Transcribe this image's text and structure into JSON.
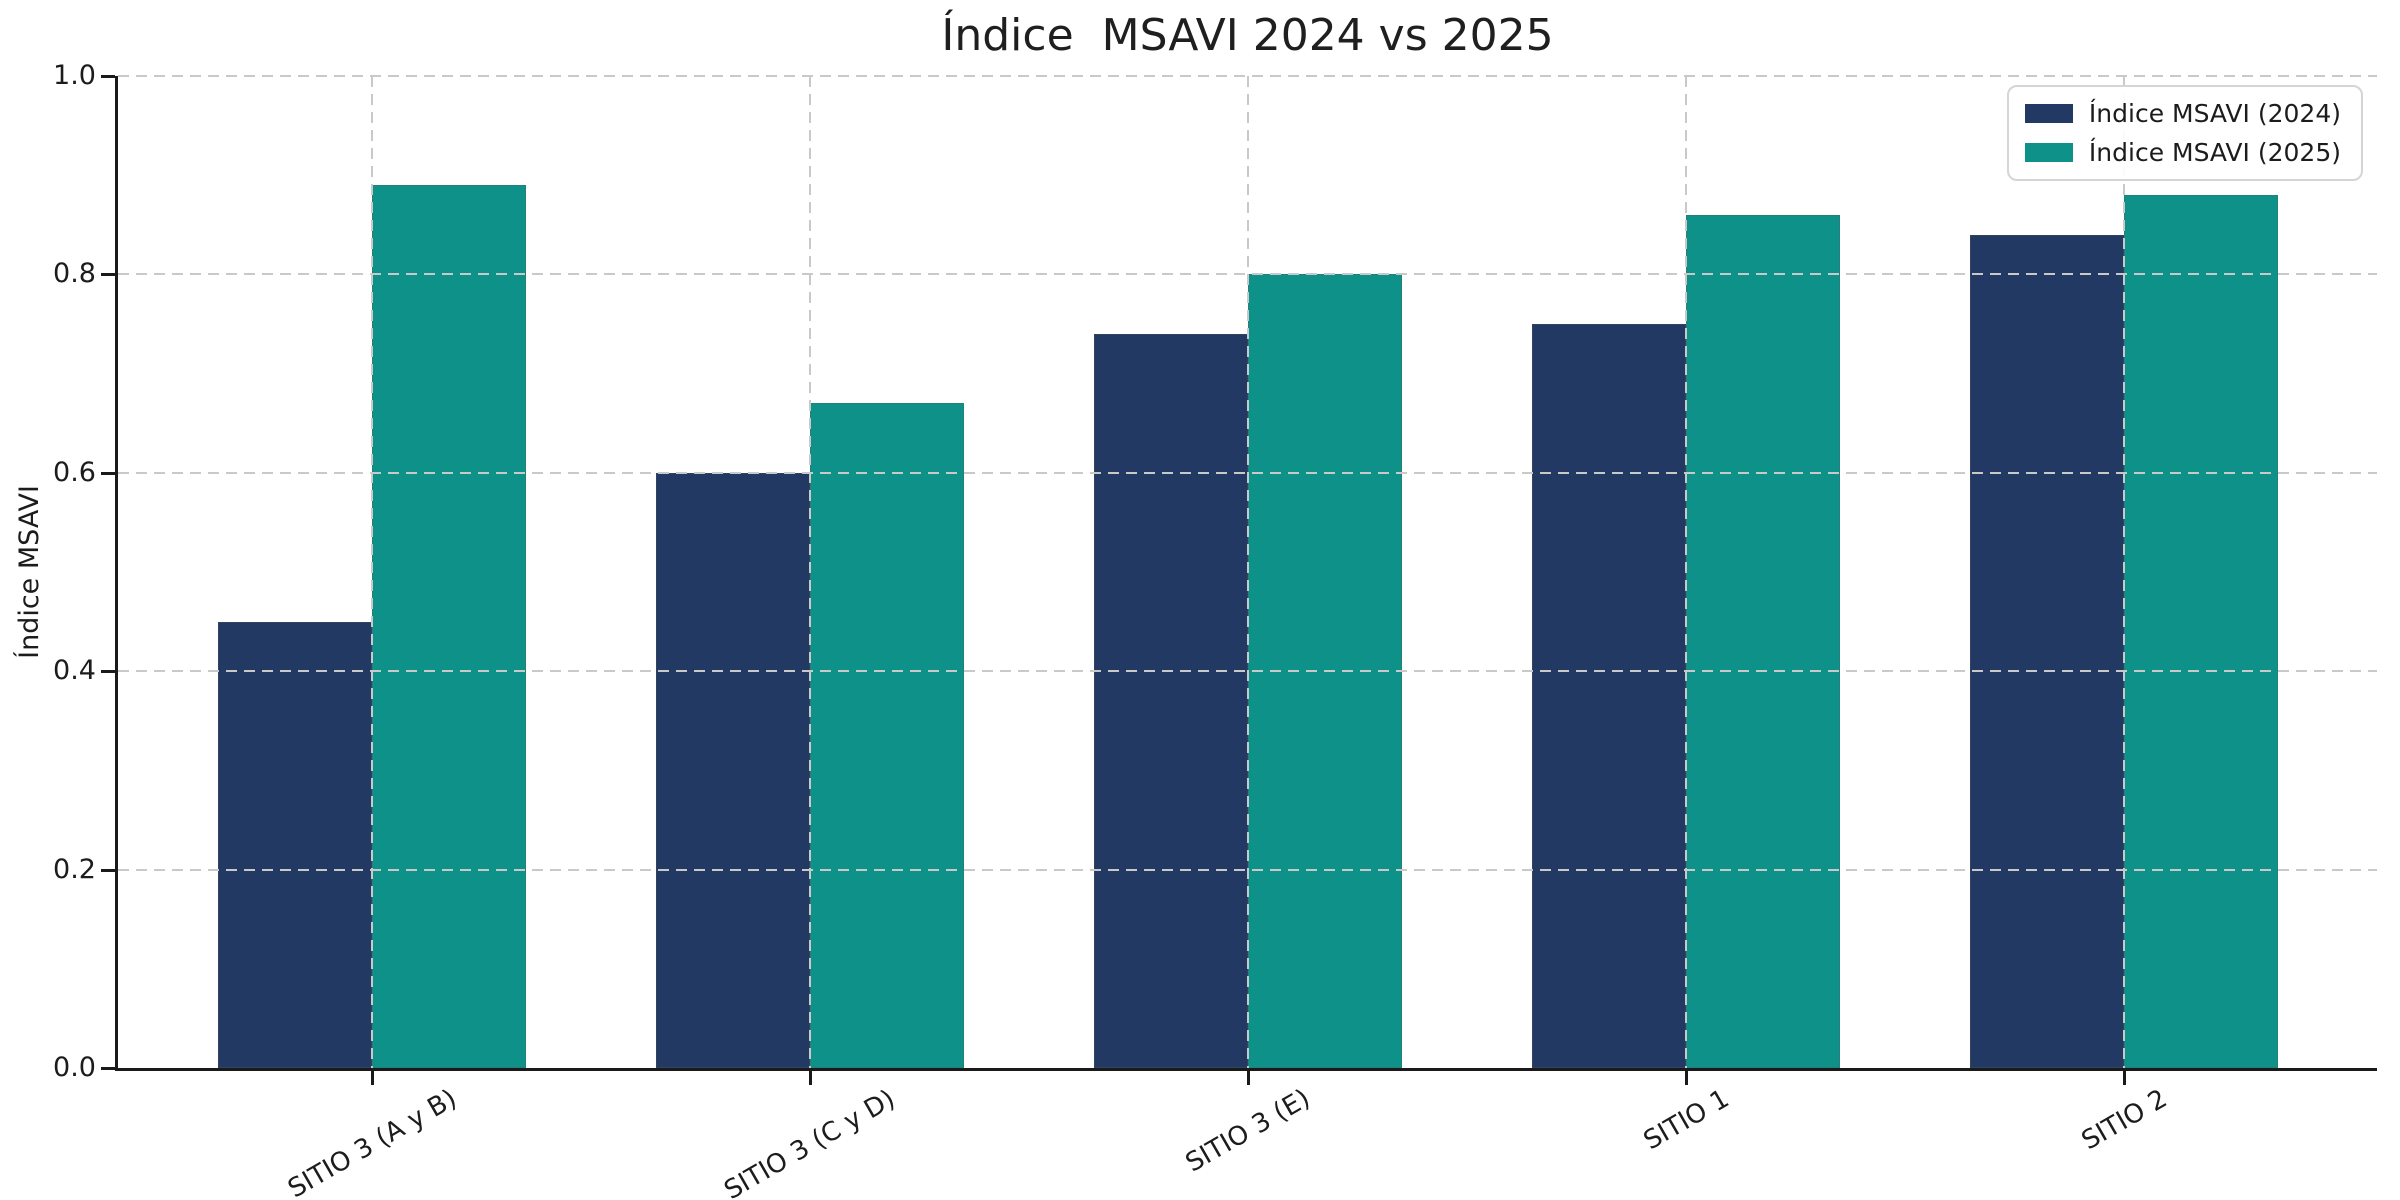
{
  "title": "Índice  MSAVI 2024 vs 2025",
  "chart_data": {
    "type": "bar",
    "title": "Índice  MSAVI 2024 vs 2025",
    "categories": [
      "SITIO 3 (A y B)",
      "SITIO 3 (C y D)",
      "SITIO 3 (E)",
      "SITIO 1",
      "SITIO 2"
    ],
    "series": [
      {
        "name": "Índice MSAVI (2024)",
        "color": "#223A63",
        "values": [
          0.45,
          0.6,
          0.74,
          0.75,
          0.84
        ]
      },
      {
        "name": "Índice MSAVI (2025)",
        "color": "#0D9188",
        "values": [
          0.89,
          0.67,
          0.8,
          0.86,
          0.88
        ]
      }
    ],
    "xlabel": "",
    "ylabel": "Índice MSAVI",
    "ylim": [
      0.0,
      1.0
    ],
    "yticks": [
      0.0,
      0.2,
      0.4,
      0.6,
      0.8,
      1.0
    ],
    "grid": "dashed, horizontal and vertical, drawn over bars",
    "legend_position": "upper right"
  },
  "colors": {
    "series_2024": "#223A63",
    "series_2025": "#0D9188",
    "grid": "#c9c9c9",
    "axis": "#1a1a1a"
  }
}
